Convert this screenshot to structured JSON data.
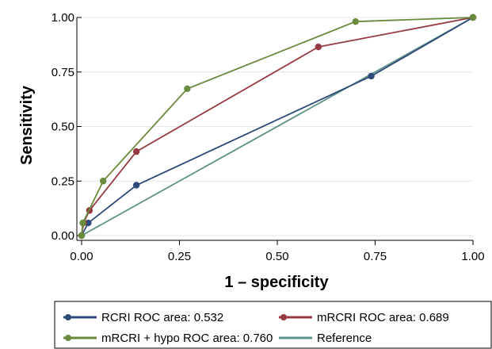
{
  "chart_data": {
    "type": "line",
    "xlabel": "1 – specificity",
    "ylabel": "Sensitivity",
    "xlim": [
      0,
      1
    ],
    "ylim": [
      0,
      1
    ],
    "x_ticks": [
      "0.00",
      "0.25",
      "0.50",
      "0.75",
      "1.00"
    ],
    "y_ticks": [
      "0.00",
      "0.25",
      "0.50",
      "0.75",
      "1.00"
    ],
    "grid": "horizontal",
    "legend_position": "bottom",
    "series": [
      {
        "name": "RCRI ROC area: 0.532",
        "color": "#2f4a7a",
        "markers": true,
        "points": [
          [
            0,
            0
          ],
          [
            0.017,
            0.058
          ],
          [
            0.14,
            0.231
          ],
          [
            0.74,
            0.731
          ],
          [
            1,
            1
          ]
        ]
      },
      {
        "name": "mRCRI ROC area: 0.689",
        "color": "#963b42",
        "markers": true,
        "points": [
          [
            0,
            0
          ],
          [
            0.005,
            0.058
          ],
          [
            0.02,
            0.115
          ],
          [
            0.14,
            0.385
          ],
          [
            0.605,
            0.865
          ],
          [
            1,
            1
          ]
        ]
      },
      {
        "name": "mRCRI + hypo ROC area: 0.760",
        "color": "#6a8a3e",
        "markers": true,
        "points": [
          [
            0,
            0
          ],
          [
            0.003,
            0.058
          ],
          [
            0.055,
            0.25
          ],
          [
            0.27,
            0.673
          ],
          [
            0.7,
            0.981
          ],
          [
            1,
            1
          ]
        ]
      },
      {
        "name": "Reference",
        "color": "#5e9288",
        "markers": false,
        "points": [
          [
            0,
            0
          ],
          [
            1,
            1
          ]
        ]
      }
    ]
  }
}
